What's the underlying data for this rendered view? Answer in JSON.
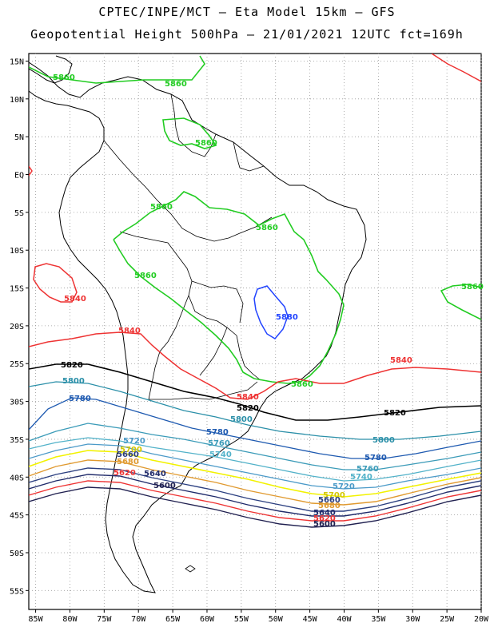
{
  "title": {
    "line1": "CPTEC/INPE/MCT –  Eta Model 15km – GFS",
    "line2": "Geopotential Height 500hPa – 21/01/2021 12UTC fct=169h"
  },
  "map": {
    "lon_labels": [
      "85W",
      "80W",
      "75W",
      "70W",
      "65W",
      "60W",
      "55W",
      "50W",
      "45W",
      "40W",
      "35W",
      "30W",
      "25W",
      "20W"
    ],
    "lat_labels": [
      "15N",
      "10N",
      "5N",
      "EQ",
      "5S",
      "10S",
      "15S",
      "20S",
      "25S",
      "30S",
      "35S",
      "40S",
      "45S",
      "50S",
      "55S"
    ],
    "lon_range": [
      -86,
      -20
    ],
    "lat_range": [
      16,
      -57.5
    ]
  },
  "colors": {
    "c5860": "#22cc22",
    "c5880": "#2244ff",
    "c5840": "#ee3333",
    "c5820": "#000000",
    "c5800": "#2a8fa8",
    "c5780": "#1d59b0",
    "c5760": "#3b9bb8",
    "c5740": "#52b2c9",
    "c5720": "#4b9ac8",
    "c5700": "#f2f200",
    "c5680": "#e09a30",
    "c5660": "#2b3f80",
    "c5640": "#1f2a6a",
    "c5620_red": "#ee3333",
    "c5600": "#202050"
  },
  "contour_labels": [
    {
      "text": "5860",
      "color": "#22cc22"
    },
    {
      "text": "5880",
      "color": "#2244ff"
    },
    {
      "text": "5840",
      "color": "#ee3333"
    },
    {
      "text": "5820",
      "color": "#000000"
    },
    {
      "text": "5800",
      "color": "#2a8fa8"
    },
    {
      "text": "5780",
      "color": "#1d59b0"
    },
    {
      "text": "5760",
      "color": "#3b9bb8"
    },
    {
      "text": "5740",
      "color": "#52b2c9"
    },
    {
      "text": "5720",
      "color": "#4b9ac8"
    },
    {
      "text": "5700",
      "color": "#d4c800"
    },
    {
      "text": "5680",
      "color": "#e09a30"
    },
    {
      "text": "5660",
      "color": "#2b3f80"
    },
    {
      "text": "5640",
      "color": "#1f2a6a"
    },
    {
      "text": "5620",
      "color": "#ee3333"
    },
    {
      "text": "5600",
      "color": "#202050"
    }
  ]
}
